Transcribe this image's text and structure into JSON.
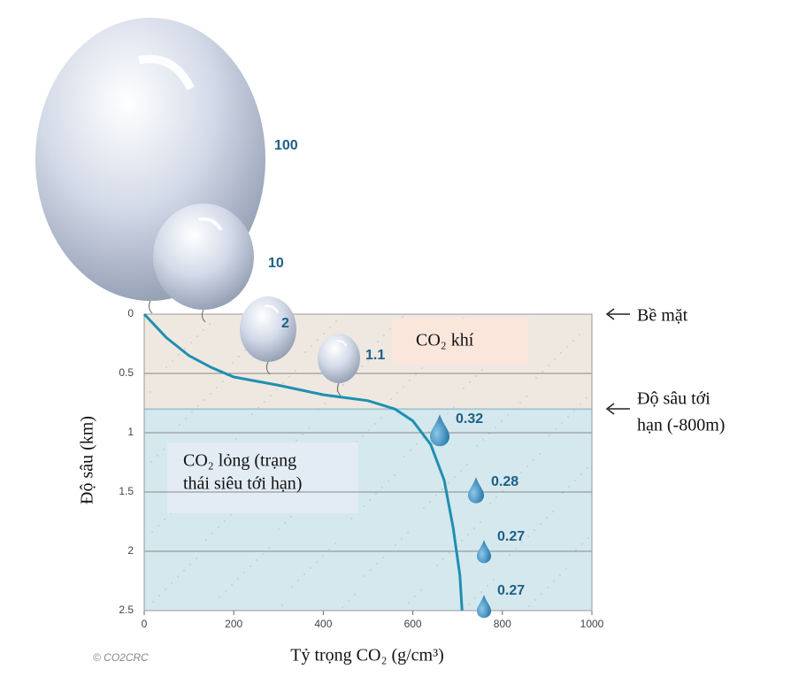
{
  "chart_data": {
    "type": "line",
    "x_label": "Tỷ trọng CO₂ (g/cm³)",
    "y_label": "Độ sâu (km)",
    "xlim": [
      0,
      1000
    ],
    "xticks": [
      0,
      200,
      400,
      600,
      800,
      1000
    ],
    "ylim": [
      0,
      2.5
    ],
    "yticks": [
      0,
      0.5,
      1,
      1.5,
      2,
      2.5
    ],
    "y_inverted": true,
    "grid": true,
    "critical_depth": 0.8,
    "series": [
      {
        "color": "#1f8fb0",
        "x": [
          0,
          50,
          100,
          150,
          200,
          300,
          400,
          500,
          560,
          600,
          640,
          670,
          690,
          705,
          710
        ],
        "values": [
          0,
          0.2,
          0.35,
          0.45,
          0.53,
          0.6,
          0.68,
          0.73,
          0.8,
          0.9,
          1.1,
          1.4,
          1.8,
          2.2,
          2.5
        ]
      }
    ],
    "volumes": [
      100,
      10,
      2,
      1.1,
      0.32,
      0.28,
      0.27,
      0.27
    ],
    "gas_label": "CO₂ khí",
    "liquid_label": [
      "CO₂ lỏng (trạng",
      "thái siêu tới hạn)"
    ],
    "surface_label": "Bề mặt",
    "critical_label": [
      "Độ sâu tới",
      "hạn (-800m)"
    ],
    "credit": "© CO2CRC"
  }
}
